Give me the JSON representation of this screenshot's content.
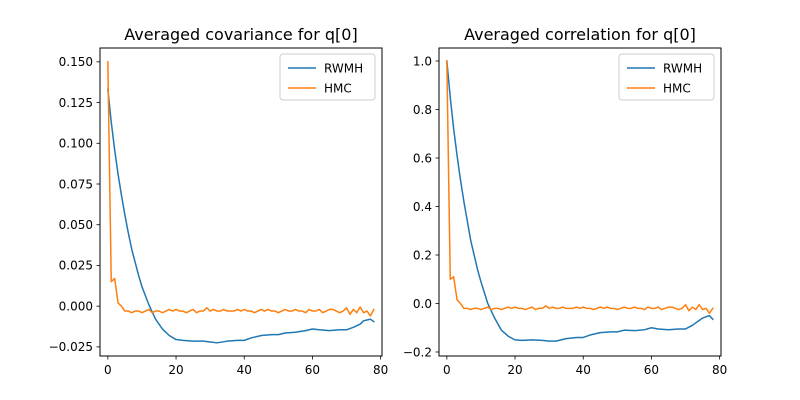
{
  "chart_data": [
    {
      "type": "line",
      "title": "Averaged covariance for q[0]",
      "xlabel": "",
      "ylabel": "",
      "xlim": [
        -2.3,
        80.4
      ],
      "ylim": [
        -0.0306,
        0.1585
      ],
      "xticks": [
        0,
        20,
        40,
        60,
        80
      ],
      "xtick_labels": [
        "0",
        "20",
        "40",
        "60",
        "80"
      ],
      "yticks": [
        -0.025,
        0.0,
        0.025,
        0.05,
        0.075,
        0.1,
        0.125,
        0.15
      ],
      "ytick_labels": [
        "−0.025",
        "0.000",
        "0.025",
        "0.050",
        "0.075",
        "0.100",
        "0.125",
        "0.150"
      ],
      "grid": false,
      "legend_position": "top-right",
      "series": [
        {
          "name": "RWMH",
          "color": "#1f77b4",
          "x": [
            0,
            1,
            2,
            3,
            4,
            5,
            6,
            7,
            8,
            9,
            10,
            12,
            14,
            16,
            18,
            20,
            22,
            25,
            28,
            30,
            32,
            35,
            38,
            40,
            42,
            45,
            48,
            50,
            52,
            55,
            58,
            60,
            62,
            65,
            68,
            70,
            72,
            74,
            75,
            76,
            77,
            78
          ],
          "values": [
            0.133,
            0.113,
            0.096,
            0.081,
            0.068,
            0.056,
            0.045,
            0.035,
            0.027,
            0.019,
            0.012,
            0.001,
            -0.008,
            -0.014,
            -0.018,
            -0.0205,
            -0.021,
            -0.0215,
            -0.0215,
            -0.022,
            -0.0225,
            -0.0215,
            -0.021,
            -0.021,
            -0.0195,
            -0.018,
            -0.0175,
            -0.0175,
            -0.0165,
            -0.016,
            -0.015,
            -0.014,
            -0.0145,
            -0.015,
            -0.0145,
            -0.0145,
            -0.013,
            -0.011,
            -0.009,
            -0.0085,
            -0.008,
            -0.0095
          ]
        },
        {
          "name": "HMC",
          "color": "#ff7f0e",
          "x": [
            0,
            1,
            2,
            3,
            4,
            5,
            6,
            7,
            8,
            9,
            10,
            11,
            12,
            13,
            14,
            15,
            16,
            17,
            18,
            19,
            20,
            21,
            22,
            23,
            24,
            25,
            26,
            27,
            28,
            29,
            30,
            31,
            32,
            33,
            34,
            35,
            36,
            37,
            38,
            39,
            40,
            41,
            42,
            43,
            44,
            45,
            46,
            47,
            48,
            49,
            50,
            51,
            52,
            53,
            54,
            55,
            56,
            57,
            58,
            59,
            60,
            61,
            62,
            63,
            64,
            65,
            66,
            67,
            68,
            69,
            70,
            71,
            72,
            73,
            74,
            75,
            76,
            77,
            78
          ],
          "values": [
            0.15,
            0.015,
            0.017,
            0.002,
            0.0,
            -0.003,
            -0.003,
            -0.004,
            -0.003,
            -0.003,
            -0.004,
            -0.003,
            -0.002,
            -0.004,
            -0.003,
            -0.003,
            -0.004,
            -0.003,
            -0.002,
            -0.003,
            -0.002,
            -0.003,
            -0.003,
            -0.004,
            -0.003,
            -0.002,
            -0.004,
            -0.003,
            -0.003,
            -0.001,
            -0.003,
            -0.002,
            -0.003,
            -0.003,
            -0.002,
            -0.003,
            -0.003,
            -0.003,
            -0.002,
            -0.003,
            -0.002,
            -0.003,
            -0.003,
            -0.004,
            -0.003,
            -0.002,
            -0.003,
            -0.002,
            -0.003,
            -0.003,
            -0.004,
            -0.003,
            -0.002,
            -0.003,
            -0.003,
            -0.002,
            -0.003,
            -0.003,
            -0.004,
            -0.002,
            -0.003,
            -0.003,
            -0.002,
            -0.004,
            -0.003,
            -0.002,
            -0.002,
            -0.003,
            -0.004,
            -0.003,
            -0.001,
            -0.005,
            -0.002,
            -0.004,
            -0.0005,
            -0.004,
            -0.003,
            -0.006,
            -0.002
          ]
        }
      ]
    },
    {
      "type": "line",
      "title": "Averaged correlation for q[0]",
      "xlabel": "",
      "ylabel": "",
      "xlim": [
        -2.3,
        80.4
      ],
      "ylim": [
        -0.2165,
        1.0535
      ],
      "xticks": [
        0,
        20,
        40,
        60,
        80
      ],
      "xtick_labels": [
        "0",
        "20",
        "40",
        "60",
        "80"
      ],
      "yticks": [
        -0.2,
        0.0,
        0.2,
        0.4,
        0.6,
        0.8,
        1.0
      ],
      "ytick_labels": [
        "−0.2",
        "0.0",
        "0.2",
        "0.4",
        "0.6",
        "0.8",
        "1.0"
      ],
      "grid": false,
      "legend_position": "top-right",
      "series": [
        {
          "name": "RWMH",
          "color": "#1f77b4",
          "x": [
            0,
            1,
            2,
            3,
            4,
            5,
            6,
            7,
            8,
            9,
            10,
            12,
            14,
            16,
            18,
            20,
            22,
            25,
            28,
            30,
            32,
            35,
            38,
            40,
            42,
            45,
            48,
            50,
            52,
            55,
            58,
            60,
            62,
            65,
            68,
            70,
            72,
            74,
            75,
            76,
            77,
            78
          ],
          "values": [
            1.0,
            0.85,
            0.72,
            0.61,
            0.51,
            0.42,
            0.34,
            0.26,
            0.2,
            0.14,
            0.09,
            0.0,
            -0.06,
            -0.11,
            -0.135,
            -0.15,
            -0.152,
            -0.15,
            -0.152,
            -0.155,
            -0.155,
            -0.145,
            -0.14,
            -0.14,
            -0.13,
            -0.12,
            -0.117,
            -0.117,
            -0.11,
            -0.112,
            -0.108,
            -0.1,
            -0.105,
            -0.108,
            -0.105,
            -0.105,
            -0.09,
            -0.07,
            -0.06,
            -0.055,
            -0.05,
            -0.065
          ]
        },
        {
          "name": "HMC",
          "color": "#ff7f0e",
          "x": [
            0,
            1,
            2,
            3,
            4,
            5,
            6,
            7,
            8,
            9,
            10,
            11,
            12,
            13,
            14,
            15,
            16,
            17,
            18,
            19,
            20,
            21,
            22,
            23,
            24,
            25,
            26,
            27,
            28,
            29,
            30,
            31,
            32,
            33,
            34,
            35,
            36,
            37,
            38,
            39,
            40,
            41,
            42,
            43,
            44,
            45,
            46,
            47,
            48,
            49,
            50,
            51,
            52,
            53,
            54,
            55,
            56,
            57,
            58,
            59,
            60,
            61,
            62,
            63,
            64,
            65,
            66,
            67,
            68,
            69,
            70,
            71,
            72,
            73,
            74,
            75,
            76,
            77,
            78
          ],
          "values": [
            1.0,
            0.1,
            0.11,
            0.015,
            0.0,
            -0.02,
            -0.02,
            -0.025,
            -0.02,
            -0.02,
            -0.025,
            -0.02,
            -0.015,
            -0.025,
            -0.02,
            -0.02,
            -0.025,
            -0.02,
            -0.015,
            -0.02,
            -0.015,
            -0.02,
            -0.02,
            -0.025,
            -0.02,
            -0.015,
            -0.025,
            -0.02,
            -0.02,
            -0.01,
            -0.02,
            -0.015,
            -0.02,
            -0.02,
            -0.015,
            -0.02,
            -0.02,
            -0.02,
            -0.015,
            -0.02,
            -0.015,
            -0.02,
            -0.02,
            -0.025,
            -0.02,
            -0.015,
            -0.02,
            -0.015,
            -0.02,
            -0.02,
            -0.025,
            -0.02,
            -0.015,
            -0.02,
            -0.02,
            -0.015,
            -0.02,
            -0.02,
            -0.025,
            -0.015,
            -0.02,
            -0.02,
            -0.015,
            -0.025,
            -0.02,
            -0.015,
            -0.015,
            -0.02,
            -0.025,
            -0.02,
            -0.005,
            -0.03,
            -0.015,
            -0.025,
            -0.005,
            -0.025,
            -0.02,
            -0.04,
            -0.02
          ]
        }
      ]
    }
  ]
}
